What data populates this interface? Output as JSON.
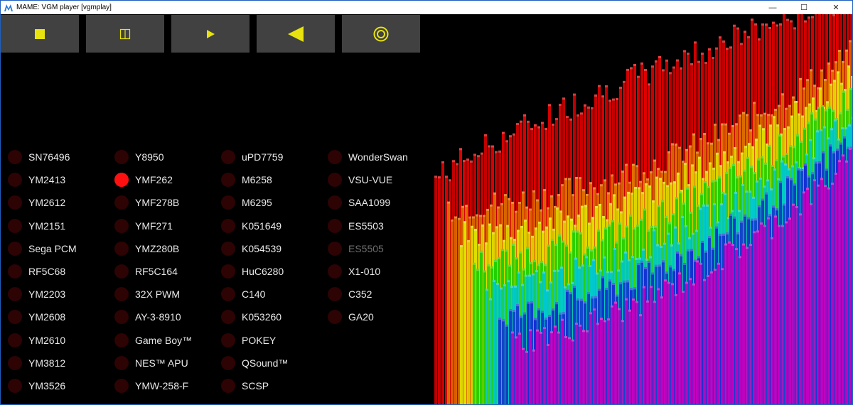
{
  "window": {
    "title": "MAME: VGM player [vgmplay]",
    "controls": {
      "minimize": "—",
      "maximize": "☐",
      "close": "✕"
    }
  },
  "toolbar": {
    "icon_color": "#e8e30e",
    "buttons": [
      {
        "name": "stop",
        "icon": "stop-icon"
      },
      {
        "name": "pause",
        "icon": "pause-icon"
      },
      {
        "name": "play",
        "icon": "play-icon"
      },
      {
        "name": "reverse",
        "icon": "reverse-icon"
      },
      {
        "name": "loop",
        "icon": "loop-icon"
      }
    ]
  },
  "chips": {
    "led_off_color": "#2d0303",
    "led_on_color": "#ff1010",
    "columns": [
      [
        "SN76496",
        "YM2413",
        "YM2612",
        "YM2151",
        "Sega PCM",
        "RF5C68",
        "YM2203",
        "YM2608",
        "YM2610",
        "YM3812",
        "YM3526"
      ],
      [
        "Y8950",
        "YMF262",
        "YMF278B",
        "YMF271",
        "YMZ280B",
        "RF5C164",
        "32X PWM",
        "AY-3-8910",
        "Game Boy™",
        "NES™ APU",
        "YMW-258-F"
      ],
      [
        "uPD7759",
        "M6258",
        "M6295",
        "K051649",
        "K054539",
        "HuC6280",
        "C140",
        "K053260",
        "POKEY",
        "QSound™",
        "SCSP"
      ],
      [
        "WonderSwan",
        "VSU-VUE",
        "SAA1099",
        "ES5503",
        "ES5505",
        "X1-010",
        "C352",
        "GA20"
      ]
    ],
    "active": [
      "YMF262"
    ],
    "disabled": [
      "ES5505"
    ]
  },
  "visualizer": {
    "name": "3d-spectrum-visualizer",
    "colors": [
      "#e00000",
      "#e07000",
      "#e0e000",
      "#20d000",
      "#00c8c8",
      "#1030d0",
      "#c000c0"
    ]
  }
}
